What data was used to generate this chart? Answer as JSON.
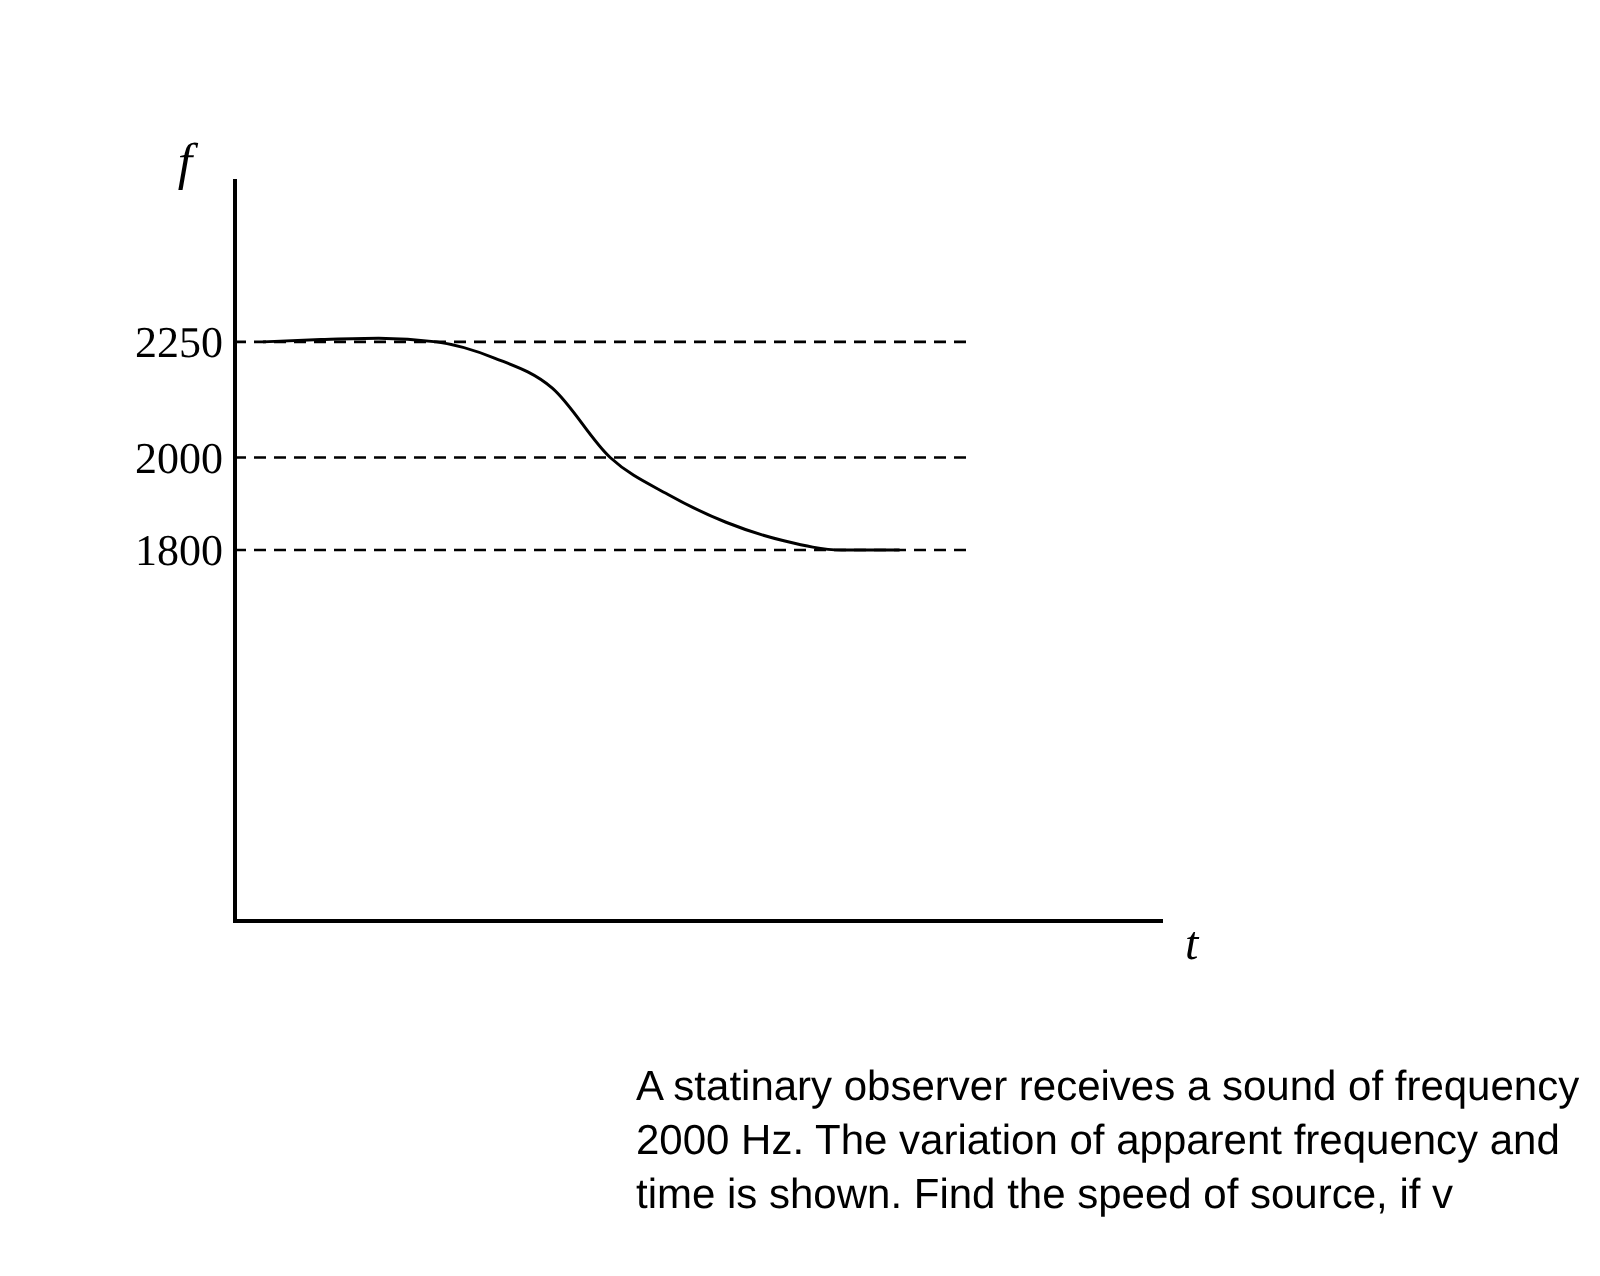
{
  "chart_data": {
    "type": "line",
    "xlabel": "t",
    "ylabel": "f",
    "categories": [
      null,
      null,
      null,
      null,
      null,
      null,
      null,
      null,
      null,
      null,
      null,
      null,
      null,
      null,
      null,
      null
    ],
    "series": [
      {
        "color": "#000000",
        "values": [
          2250,
          2255,
          2258,
          2250,
          2215,
          2150,
          2000,
          1920,
          1860,
          1820,
          1800,
          1800,
          null,
          null,
          null,
          null
        ]
      }
    ],
    "ylim": [
      1000,
      2600
    ],
    "yticks": [
      1800,
      2000,
      2250
    ],
    "tick_labels": "y",
    "grid": false,
    "marker": "none",
    "line_style": "solid",
    "ref_lines": [
      {
        "axis": "y",
        "value": 2250,
        "line_style": "dashed",
        "color": "#000000"
      },
      {
        "axis": "y",
        "value": 2000,
        "line_style": "dashed",
        "color": "#000000"
      },
      {
        "axis": "y",
        "value": 1800,
        "line_style": "dashed",
        "color": "#000000"
      }
    ],
    "annotations": [
      "A statinary observer receives a sound of frequency 2000 Hz. The variation of apparent frequency and time is shown. Find the speed of source, if v"
    ]
  }
}
